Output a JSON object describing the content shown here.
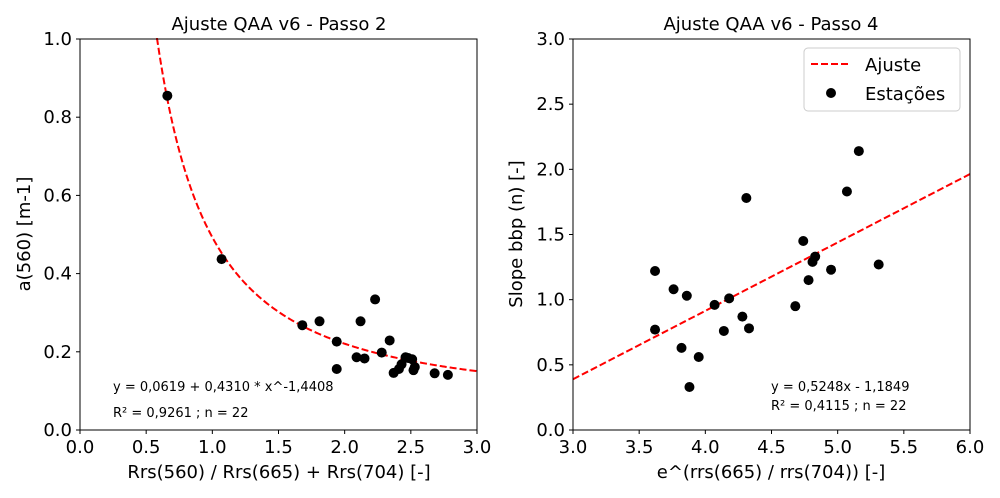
{
  "chart_data": [
    {
      "type": "scatter",
      "title": "Ajuste QAA v6 - Passo 2",
      "xlabel": "Rrs(560) / Rrs(665) + Rrs(704) [-]",
      "ylabel": "a(560) [m-1]",
      "xlim": [
        0.0,
        3.0
      ],
      "ylim": [
        0.0,
        1.0
      ],
      "xticks": [
        "0.0",
        "0.5",
        "1.0",
        "1.5",
        "2.0",
        "2.5",
        "3.0"
      ],
      "yticks": [
        "0.0",
        "0.2",
        "0.4",
        "0.6",
        "0.8",
        "1.0"
      ],
      "grid": false,
      "fit": {
        "a": 0.0619,
        "b": 0.431,
        "c": -1.4408,
        "color": "#ff0000",
        "style": "dashed"
      },
      "annotations": [
        "y = 0,0619 + 0,4310 * x^-1,4408",
        "R² = 0,9261 ; n = 22"
      ],
      "points": [
        [
          0.66,
          0.855
        ],
        [
          1.07,
          0.437
        ],
        [
          1.68,
          0.268
        ],
        [
          1.81,
          0.278
        ],
        [
          1.94,
          0.226
        ],
        [
          1.94,
          0.156
        ],
        [
          2.09,
          0.186
        ],
        [
          2.12,
          0.278
        ],
        [
          2.15,
          0.183
        ],
        [
          2.23,
          0.334
        ],
        [
          2.28,
          0.198
        ],
        [
          2.34,
          0.229
        ],
        [
          2.37,
          0.146
        ],
        [
          2.41,
          0.156
        ],
        [
          2.43,
          0.168
        ],
        [
          2.46,
          0.186
        ],
        [
          2.48,
          0.184
        ],
        [
          2.51,
          0.181
        ],
        [
          2.52,
          0.153
        ],
        [
          2.53,
          0.161
        ],
        [
          2.68,
          0.145
        ],
        [
          2.78,
          0.141
        ]
      ]
    },
    {
      "type": "scatter",
      "title": "Ajuste QAA v6 - Passo 4",
      "xlabel": "e^(rrs(665) / rrs(704)) [-]",
      "ylabel": "Slope bbp (n) [-]",
      "xlim": [
        3.0,
        6.0
      ],
      "ylim": [
        0.0,
        3.0
      ],
      "xticks": [
        "3.0",
        "3.5",
        "4.0",
        "4.5",
        "5.0",
        "5.5",
        "6.0"
      ],
      "yticks": [
        "0.0",
        "0.5",
        "1.0",
        "1.5",
        "2.0",
        "2.5",
        "3.0"
      ],
      "grid": false,
      "legend": {
        "position": "top-right",
        "entries": [
          "Ajuste",
          "Estações"
        ]
      },
      "fit": {
        "slope": 0.5248,
        "intercept": -1.1849,
        "color": "#ff0000",
        "style": "dashed"
      },
      "annotations": [
        "y = 0,5248x - 1,1849",
        "R² = 0,4115 ; n = 22"
      ],
      "points": [
        [
          3.62,
          1.22
        ],
        [
          3.62,
          0.77
        ],
        [
          3.76,
          1.08
        ],
        [
          3.82,
          0.63
        ],
        [
          3.86,
          1.03
        ],
        [
          3.88,
          0.33
        ],
        [
          3.95,
          0.56
        ],
        [
          4.07,
          0.96
        ],
        [
          4.14,
          0.76
        ],
        [
          4.18,
          1.01
        ],
        [
          4.28,
          0.87
        ],
        [
          4.31,
          1.78
        ],
        [
          4.33,
          0.78
        ],
        [
          4.68,
          0.95
        ],
        [
          4.74,
          1.45
        ],
        [
          4.78,
          1.15
        ],
        [
          4.81,
          1.29
        ],
        [
          4.83,
          1.33
        ],
        [
          4.95,
          1.23
        ],
        [
          5.07,
          1.83
        ],
        [
          5.16,
          2.14
        ],
        [
          5.31,
          1.27
        ]
      ]
    }
  ]
}
